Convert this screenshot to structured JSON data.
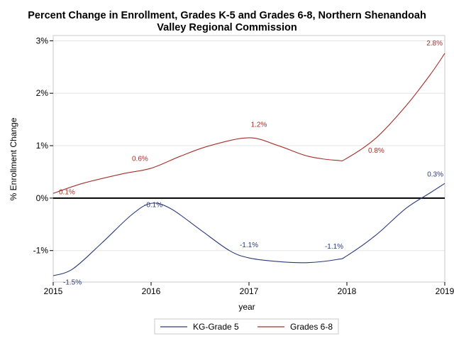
{
  "chart_data": {
    "type": "line",
    "title": "Percent Change in Enrollment, Grades K-5 and Grades 6-8, Northern Shenandoah Valley Regional Commission",
    "title_lines": [
      "Percent Change in Enrollment, Grades K-5 and Grades 6-8, Northern Shenandoah",
      "Valley Regional Commission"
    ],
    "xlabel": "year",
    "ylabel": "% Enrollment Change",
    "x": [
      2015,
      2016,
      2017,
      2018,
      2019
    ],
    "x_ticks": [
      "2015",
      "2016",
      "2017",
      "2018",
      "2019"
    ],
    "xlim": [
      2015,
      2019
    ],
    "ylim": [
      -1.6,
      3.1
    ],
    "y_ticks": [
      {
        "value": -1,
        "label": "-1%"
      },
      {
        "value": 0,
        "label": "0%"
      },
      {
        "value": 1,
        "label": "1%"
      },
      {
        "value": 2,
        "label": "2%"
      },
      {
        "value": 3,
        "label": "3%"
      }
    ],
    "grid": "horizontal",
    "reference_line": 0,
    "legend_position": "bottom",
    "series": [
      {
        "name": "KG-Grade 5",
        "color": "#2b3a7a",
        "values": [
          -1.5,
          -0.1,
          -1.1,
          -1.1,
          0.3
        ],
        "labels": [
          "-1.5%",
          "-0.1%",
          "-1.1%",
          "-1.1%",
          "0.3%"
        ],
        "curve": [
          [
            2015,
            -1.48
          ],
          [
            2015.2,
            -1.35
          ],
          [
            2015.5,
            -0.85
          ],
          [
            2015.8,
            -0.32
          ],
          [
            2016,
            -0.1
          ],
          [
            2016.2,
            -0.2
          ],
          [
            2016.5,
            -0.6
          ],
          [
            2016.8,
            -1.0
          ],
          [
            2017,
            -1.14
          ],
          [
            2017.3,
            -1.21
          ],
          [
            2017.6,
            -1.23
          ],
          [
            2017.9,
            -1.17
          ],
          [
            2018,
            -1.1
          ],
          [
            2018.3,
            -0.7
          ],
          [
            2018.6,
            -0.2
          ],
          [
            2018.85,
            0.1
          ],
          [
            2019,
            0.28
          ]
        ]
      },
      {
        "name": "Grades 6-8",
        "color": "#a5302a",
        "values": [
          0.1,
          0.6,
          1.2,
          0.8,
          2.8
        ],
        "labels": [
          "0.1%",
          "0.6%",
          "1.2%",
          "0.8%",
          "2.8%"
        ],
        "curve": [
          [
            2015,
            0.09
          ],
          [
            2015.3,
            0.28
          ],
          [
            2015.7,
            0.46
          ],
          [
            2016,
            0.57
          ],
          [
            2016.3,
            0.8
          ],
          [
            2016.6,
            1.0
          ],
          [
            2017,
            1.15
          ],
          [
            2017.3,
            1.0
          ],
          [
            2017.6,
            0.8
          ],
          [
            2017.9,
            0.72
          ],
          [
            2018,
            0.76
          ],
          [
            2018.3,
            1.15
          ],
          [
            2018.6,
            1.75
          ],
          [
            2018.85,
            2.35
          ],
          [
            2019,
            2.76
          ]
        ]
      }
    ]
  }
}
